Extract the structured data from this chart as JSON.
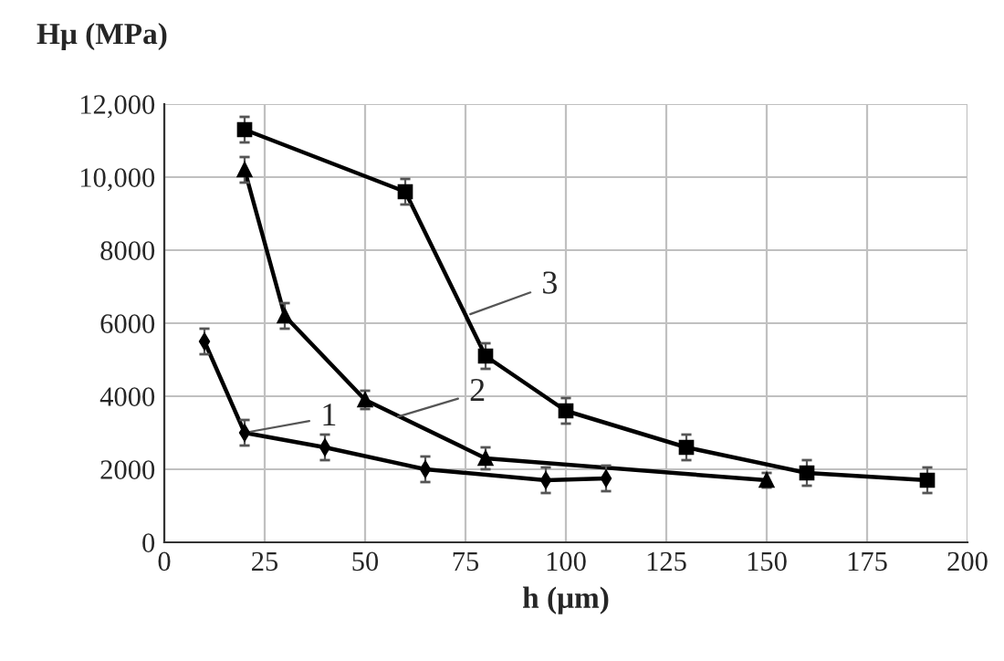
{
  "chart_data": {
    "type": "line",
    "xlabel": "h (μm)",
    "ylabel": "Hμ (MPa)",
    "xlim": [
      0,
      200
    ],
    "xticks": [
      0,
      25,
      50,
      75,
      100,
      125,
      150,
      175,
      200
    ],
    "ylim": [
      0,
      12000
    ],
    "yticks": [
      0,
      2000,
      4000,
      6000,
      8000,
      {
        "value": 10000,
        "label": "10,000"
      },
      {
        "value": 12000,
        "label": "12,000"
      }
    ],
    "grid": true,
    "legend": false,
    "series": [
      {
        "x": [
          10,
          20,
          40,
          65,
          95,
          110
        ],
        "values": [
          5500,
          3000,
          2600,
          2000,
          1700,
          1750
        ],
        "errors": [
          350,
          350,
          350,
          350,
          350,
          350
        ],
        "color": "#000000",
        "marker": "diamond"
      },
      {
        "x": [
          20,
          30,
          50,
          80,
          150
        ],
        "values": [
          10200,
          6200,
          3900,
          2300,
          1700
        ],
        "errors": [
          350,
          350,
          250,
          300,
          200
        ],
        "color": "#000000",
        "marker": "triangle"
      },
      {
        "x": [
          20,
          60,
          80,
          100,
          130,
          160,
          190
        ],
        "values": [
          11300,
          9600,
          5100,
          3600,
          2600,
          1900,
          1700
        ],
        "errors": [
          350,
          350,
          350,
          350,
          350,
          350,
          350
        ],
        "color": "#000000",
        "marker": "square"
      }
    ],
    "annotations": [
      {
        "text": "1",
        "x": 20,
        "y": 3000
      },
      {
        "text": "2",
        "x": 57,
        "y": 3400
      },
      {
        "text": "3",
        "x": 75,
        "y": 6200
      }
    ]
  }
}
